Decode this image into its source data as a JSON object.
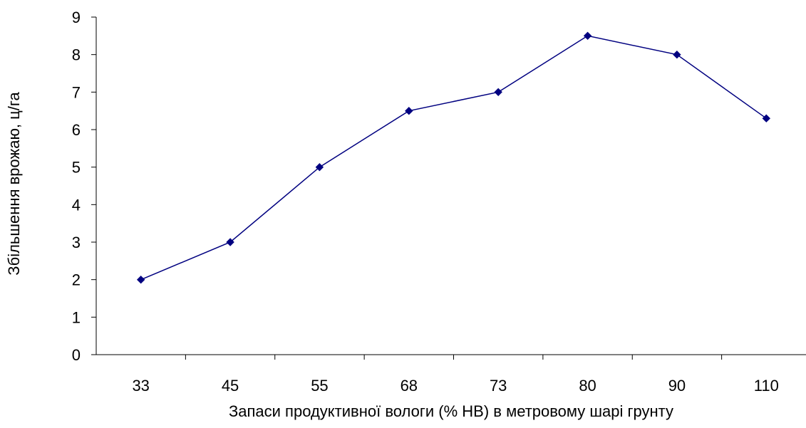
{
  "chart_data": {
    "type": "line",
    "title": "",
    "xlabel": "Запаси продуктивної вологи (% НВ) в метровому шарі грунту",
    "ylabel": "Збільшення врожаю, ц/га",
    "categories": [
      "33",
      "45",
      "55",
      "68",
      "73",
      "80",
      "90",
      "110"
    ],
    "series": [
      {
        "values": [
          2,
          3,
          5,
          6.5,
          7,
          8.5,
          8,
          6.3
        ],
        "color": "#000080",
        "marker": "diamond"
      }
    ],
    "ylim": [
      0,
      9
    ],
    "yticks": [
      "0",
      "1",
      "2",
      "3",
      "4",
      "5",
      "6",
      "7",
      "8",
      "9"
    ],
    "grid": false,
    "legend": "none"
  }
}
